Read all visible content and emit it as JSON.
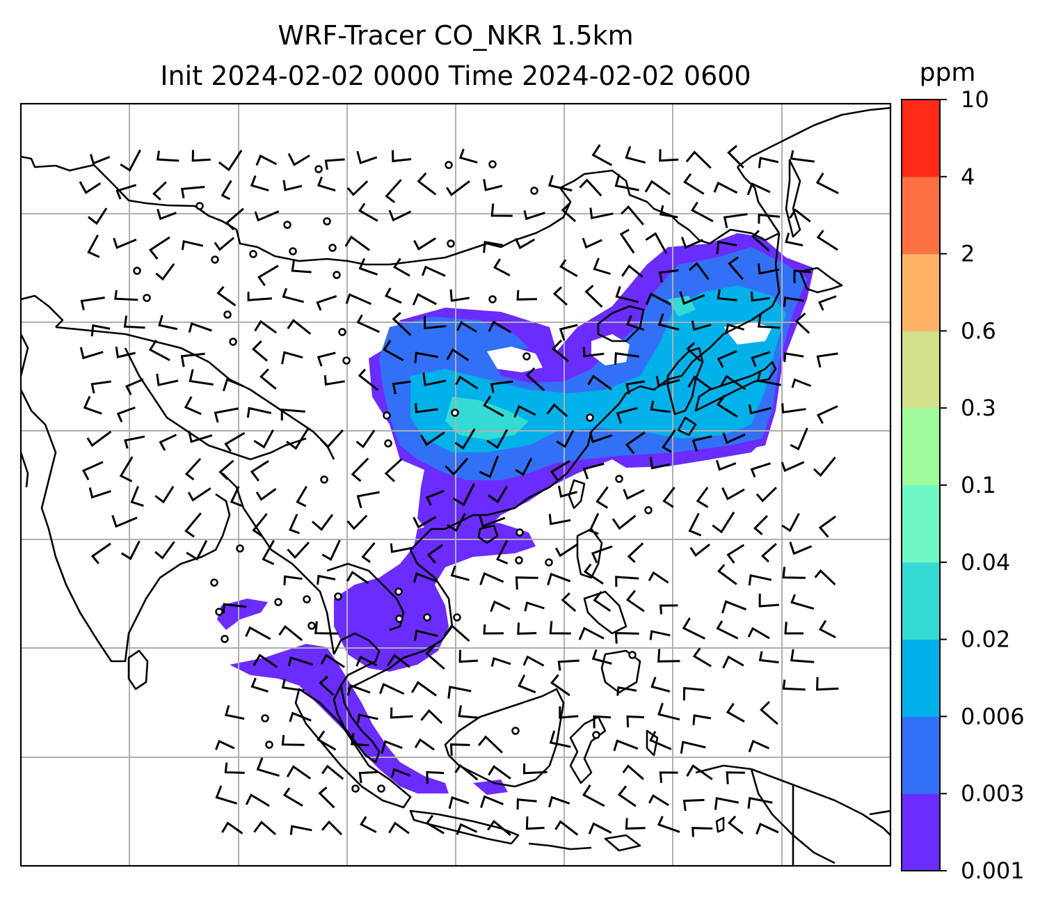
{
  "title": {
    "line1": "WRF-Tracer CO_NKR 1.5km",
    "line2": "Init 2024-02-02 0000 Time 2024-02-02 0600"
  },
  "colorbar": {
    "unit": "ppm",
    "levels": [
      "0.001",
      "0.003",
      "0.006",
      "0.02",
      "0.04",
      "0.1",
      "0.3",
      "0.6",
      "2",
      "4",
      "10"
    ],
    "colors": [
      "#6a2cff",
      "#3271f5",
      "#00b1ea",
      "#35dad5",
      "#6ff7c5",
      "#9ffb9b",
      "#d1e08a",
      "#ffb266",
      "#ff7040",
      "#ff2b18"
    ]
  },
  "map": {
    "gridlines": true,
    "plume_colors": {
      "outer": "#6a2cff",
      "mid": "#3271f5",
      "core": "#00b1ea",
      "peak": "#35dad5"
    },
    "line_color": "#000000",
    "grid_color": "#b0b0b0"
  }
}
